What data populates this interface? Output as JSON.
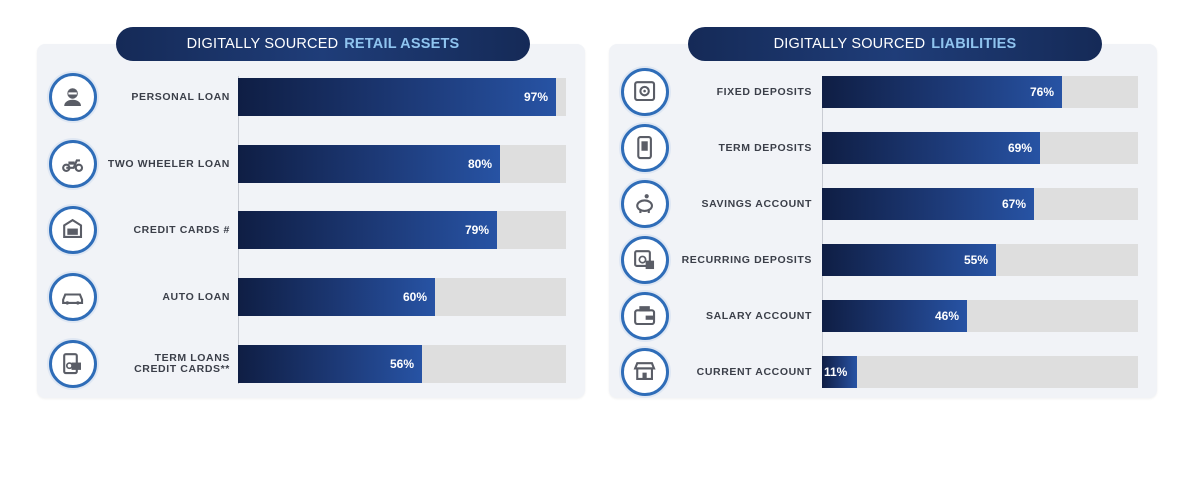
{
  "chart_data": [
    {
      "type": "bar",
      "orientation": "horizontal",
      "title_prefix": "DIGITALLY SOURCED",
      "title_highlight": "RETAIL ASSETS",
      "categories": [
        "PERSONAL LOAN",
        "TWO WHEELER LOAN",
        "CREDIT CARDS #",
        "AUTO LOAN",
        "TERM LOANS\nCREDIT CARDS**"
      ],
      "values": [
        97,
        80,
        79,
        60,
        56
      ],
      "value_labels": [
        "97%",
        "80%",
        "79%",
        "60%",
        "56%"
      ],
      "icons": [
        "person-icon",
        "scooter-icon",
        "credit-card-icon",
        "car-icon",
        "loan-document-icon"
      ],
      "xlim": [
        0,
        100
      ]
    },
    {
      "type": "bar",
      "orientation": "horizontal",
      "title_prefix": "DIGITALLY SOURCED",
      "title_highlight": "LIABILITIES",
      "categories": [
        "FIXED DEPOSITS",
        "TERM DEPOSITS",
        "SAVINGS ACCOUNT",
        "RECURRING DEPOSITS",
        "SALARY ACCOUNT",
        "CURRENT ACCOUNT"
      ],
      "values": [
        76,
        69,
        67,
        55,
        46,
        11
      ],
      "value_labels": [
        "76%",
        "69%",
        "67%",
        "55%",
        "46%",
        "11%"
      ],
      "icons": [
        "safe-icon",
        "deposit-phone-icon",
        "piggy-bank-icon",
        "calendar-deposit-icon",
        "wallet-icon",
        "store-icon"
      ],
      "xlim": [
        0,
        100
      ]
    }
  ],
  "colors": {
    "accent_light": "#8fc4ef",
    "bar_dark": "#0f1e44",
    "bar_light": "#2753a4",
    "track": "#dedede",
    "icon_ring": "#2f6db8"
  }
}
